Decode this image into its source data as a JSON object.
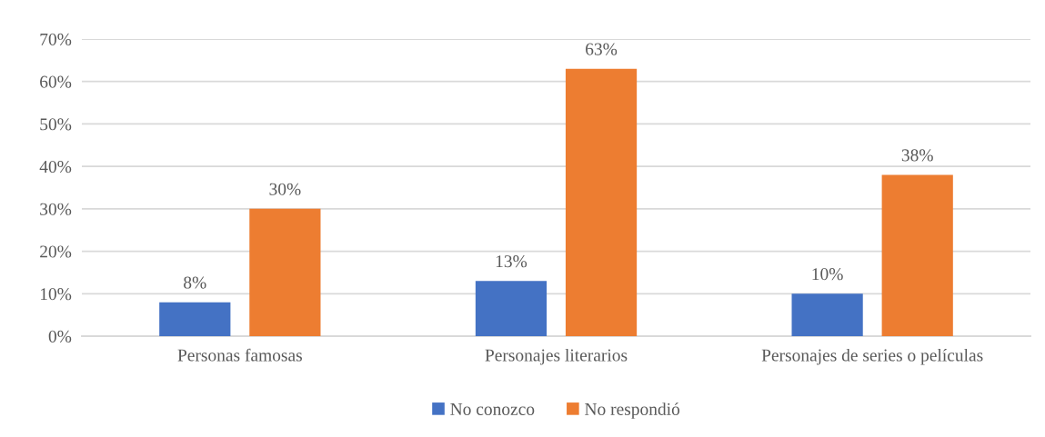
{
  "chart_data": {
    "type": "bar",
    "categories": [
      "Personas famosas",
      "Personajes literarios",
      "Personajes de series o películas"
    ],
    "series": [
      {
        "name": "No conozco",
        "color": "#4472c4",
        "values": [
          8,
          13,
          10
        ]
      },
      {
        "name": "No respondió",
        "color": "#ed7d31",
        "values": [
          30,
          63,
          38
        ]
      }
    ],
    "ylim": [
      0,
      70
    ],
    "yticks": [
      {
        "value": 0,
        "label": "0%"
      },
      {
        "value": 10,
        "label": "10%"
      },
      {
        "value": 20,
        "label": "20%"
      },
      {
        "value": 30,
        "label": "30%"
      },
      {
        "value": 40,
        "label": "40%"
      },
      {
        "value": 50,
        "label": "50%"
      },
      {
        "value": 60,
        "label": "60%"
      },
      {
        "value": 70,
        "label": "70%"
      }
    ],
    "value_labels": [
      [
        "8%",
        "13%",
        "10%"
      ],
      [
        "30%",
        "63%",
        "38%"
      ]
    ],
    "grid": "y",
    "legend": "bottom"
  }
}
